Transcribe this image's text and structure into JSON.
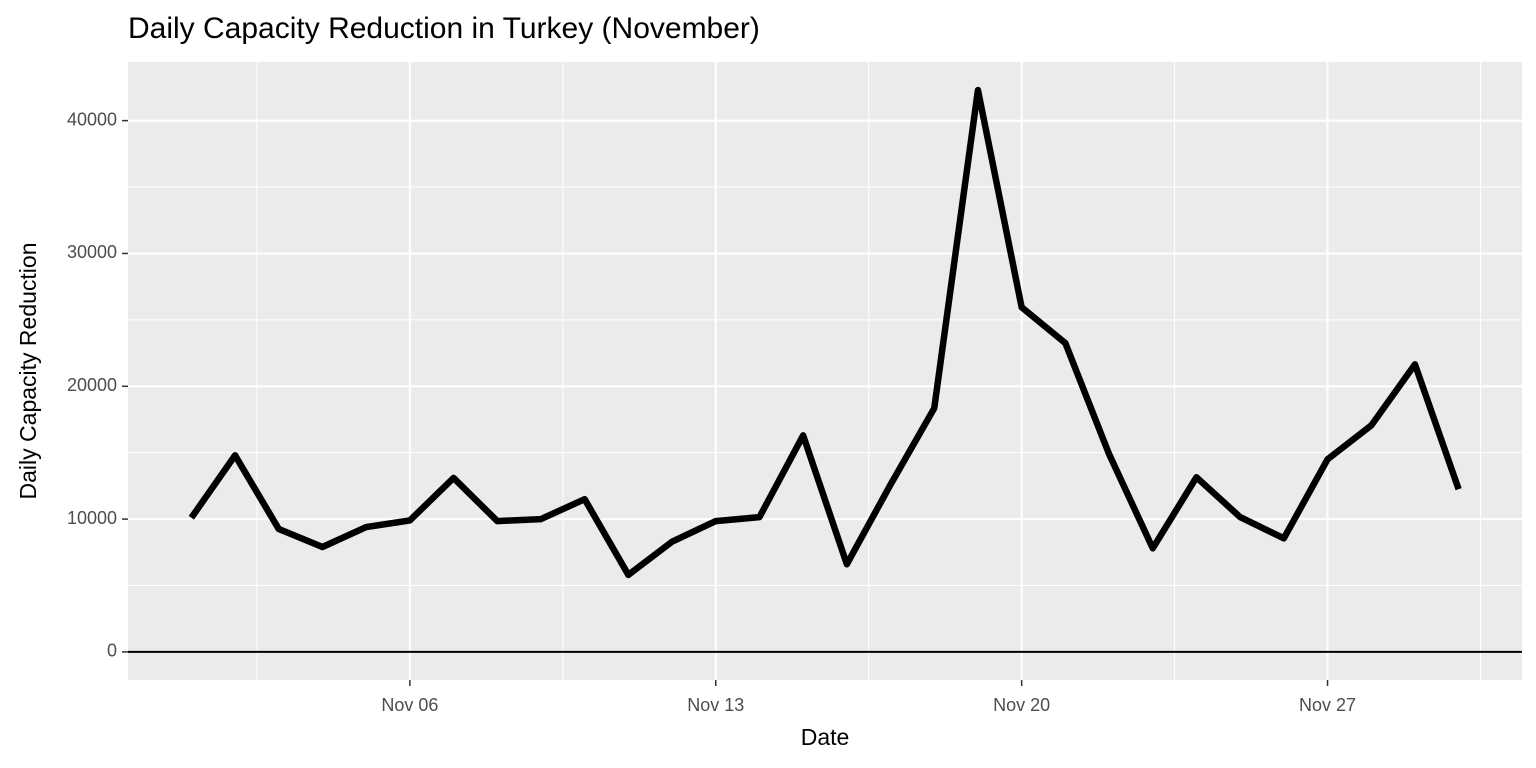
{
  "chart_data": {
    "type": "line",
    "title": "Daily Capacity Reduction in Turkey (November)",
    "x_label": "Date",
    "y_label": "Daily Capacity Reduction",
    "x": [
      1,
      2,
      3,
      4,
      5,
      6,
      7,
      8,
      9,
      10,
      11,
      12,
      13,
      14,
      15,
      16,
      17,
      18,
      19,
      20,
      21,
      22,
      23,
      24,
      25,
      26,
      27,
      28,
      29,
      30
    ],
    "series": [
      {
        "color": "#000000",
        "values": [
          10100,
          14800,
          9250,
          7900,
          9400,
          9900,
          13100,
          9850,
          10000,
          11500,
          5800,
          8300,
          9850,
          10150,
          16300,
          6600,
          12600,
          18350,
          42300,
          25950,
          23250,
          14900,
          7800,
          13150,
          10150,
          8550,
          14500,
          17050,
          21650,
          12250
        ]
      }
    ],
    "xlim": [
      -0.45,
      31.45
    ],
    "xticks": [
      {
        "value": 6,
        "label": "Nov 06"
      },
      {
        "value": 13,
        "label": "Nov 13"
      },
      {
        "value": 20,
        "label": "Nov 20"
      },
      {
        "value": 27,
        "label": "Nov 27"
      }
    ],
    "ylim": [
      -2115,
      44415
    ],
    "yticks": [
      0,
      10000,
      20000,
      30000,
      40000
    ],
    "hline": 0,
    "grid": true
  }
}
